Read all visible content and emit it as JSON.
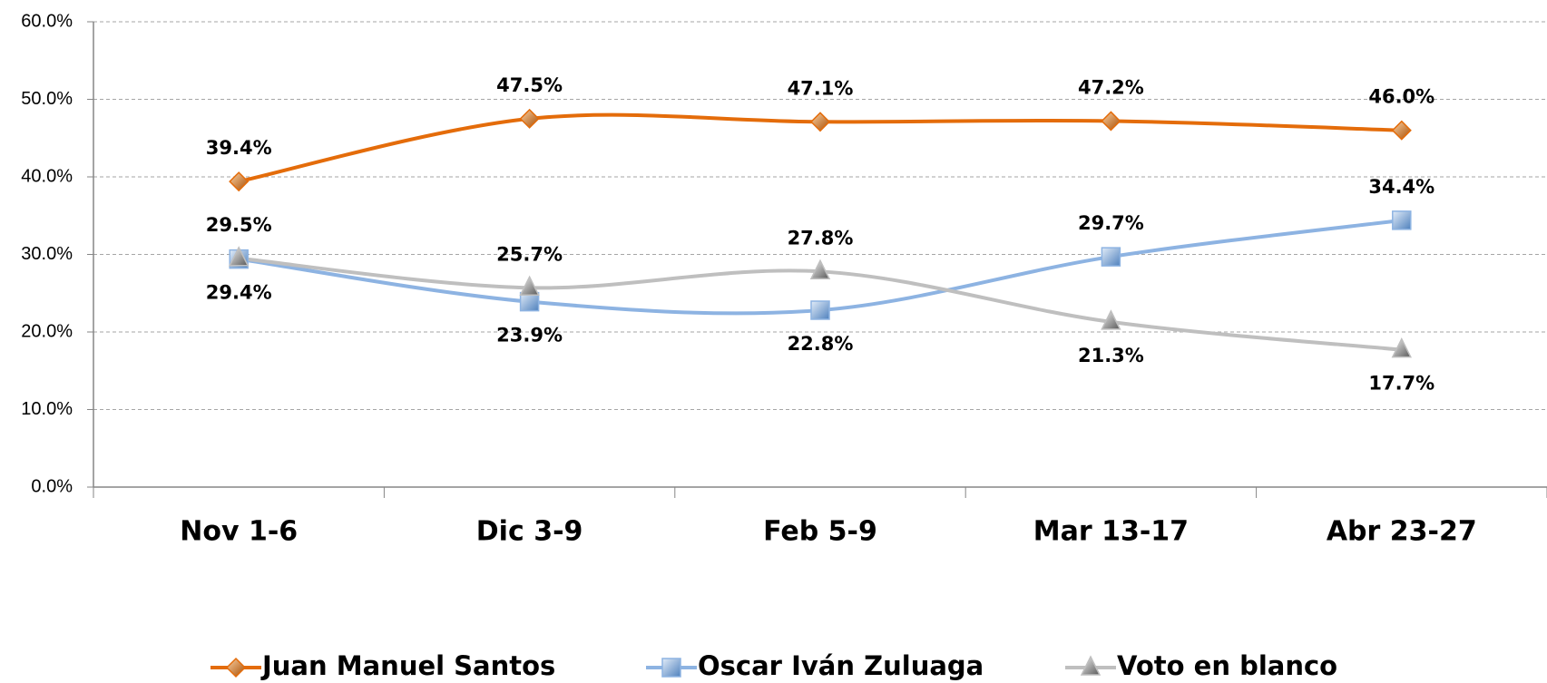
{
  "chart_data": {
    "type": "line",
    "categories": [
      "Nov 1-6",
      "Dic 3-9",
      "Feb 5-9",
      "Mar 13-17",
      "Abr 23-27"
    ],
    "series": [
      {
        "name": "Juan Manuel Santos",
        "color": "#e46c0a",
        "marker": "diamond",
        "values": [
          39.4,
          47.5,
          47.1,
          47.2,
          46.0
        ],
        "value_labels": [
          "39.4%",
          "47.5%",
          "47.1%",
          "47.2%",
          "46.0%"
        ]
      },
      {
        "name": "Oscar Iván Zuluaga",
        "color": "#8db3e2",
        "marker": "square",
        "values": [
          29.4,
          23.9,
          22.8,
          29.7,
          34.4
        ],
        "value_labels": [
          "29.4%",
          "23.9%",
          "22.8%",
          "29.7%",
          "34.4%"
        ]
      },
      {
        "name": "Voto en blanco",
        "color": "#bfbfbf",
        "marker": "triangle",
        "values": [
          29.5,
          25.7,
          27.8,
          21.3,
          17.7
        ],
        "value_labels": [
          "29.5%",
          "25.7%",
          "27.8%",
          "21.3%",
          "17.7%"
        ]
      }
    ],
    "ylim": [
      0,
      60
    ],
    "yticks": [
      {
        "value": 0,
        "label": "0.0%"
      },
      {
        "value": 10,
        "label": "10.0%"
      },
      {
        "value": 20,
        "label": "20.0%"
      },
      {
        "value": 30,
        "label": "30.0%"
      },
      {
        "value": 40,
        "label": "40.0%"
      },
      {
        "value": 50,
        "label": "50.0%"
      },
      {
        "value": 60,
        "label": "60.0%"
      }
    ],
    "grid": true,
    "smooth": true,
    "legend": "bottom"
  }
}
